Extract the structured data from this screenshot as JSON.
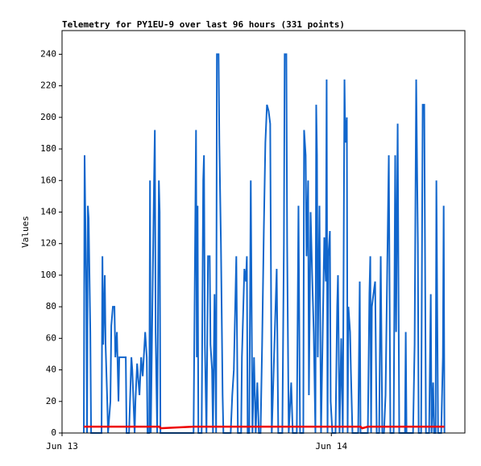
{
  "chart_data": {
    "type": "line",
    "title": "Telemetry for PY1EU-9 over last 96 hours (331 points)",
    "y_label": "Values",
    "xlim": [
      0,
      35.9
    ],
    "xticks": [
      {
        "value": 0,
        "label": "Jun 13"
      },
      {
        "value": 24,
        "label": "Jun 14"
      }
    ],
    "ylim": [
      0,
      255
    ],
    "yticks": [
      0,
      20,
      40,
      60,
      80,
      100,
      120,
      140,
      160,
      180,
      200,
      220,
      240
    ],
    "x": [
      1.94,
      2.01,
      2.16,
      2.23,
      2.3,
      2.37,
      2.52,
      2.59,
      3.52,
      3.6,
      3.67,
      3.81,
      3.88,
      4.03,
      4.1,
      4.31,
      4.39,
      4.53,
      4.67,
      4.75,
      4.89,
      5.03,
      5.1,
      5.25,
      5.68,
      5.75,
      5.97,
      6.04,
      6.18,
      6.26,
      6.47,
      6.54,
      6.69,
      6.9,
      7.05,
      7.19,
      7.41,
      7.55,
      7.62,
      7.77,
      7.84,
      7.91,
      8.05,
      8.2,
      8.27,
      8.34,
      8.48,
      8.63,
      8.7,
      8.77,
      11.72,
      11.94,
      12.01,
      12.08,
      12.15,
      12.44,
      12.58,
      12.65,
      12.73,
      12.87,
      13.01,
      13.16,
      13.23,
      13.37,
      13.45,
      13.59,
      13.73,
      13.8,
      13.95,
      14.02,
      14.16,
      14.31,
      14.38,
      15.03,
      15.17,
      15.31,
      15.53,
      15.67,
      15.96,
      16.03,
      16.25,
      16.39,
      16.47,
      16.54,
      16.68,
      16.82,
      16.97,
      17.11,
      17.26,
      17.4,
      17.54,
      17.69,
      17.83,
      17.98,
      18.12,
      18.26,
      18.41,
      18.55,
      18.69,
      19.13,
      19.27,
      19.63,
      19.77,
      19.84,
      19.99,
      20.06,
      20.2,
      20.42,
      20.56,
      20.92,
      21.07,
      21.21,
      21.5,
      21.57,
      21.71,
      21.79,
      21.93,
      22.0,
      22.15,
      22.29,
      22.43,
      22.58,
      22.65,
      22.72,
      22.79,
      22.94,
      23.08,
      23.37,
      23.51,
      23.58,
      23.66,
      23.73,
      23.87,
      23.94,
      24.09,
      24.37,
      24.52,
      24.59,
      24.73,
      24.88,
      25.02,
      25.17,
      25.24,
      25.38,
      25.45,
      25.52,
      25.67,
      25.74,
      25.88,
      26.39,
      26.53,
      26.6,
      26.75,
      27.25,
      27.39,
      27.47,
      27.54,
      27.61,
      27.75,
      27.9,
      28.04,
      28.26,
      28.4,
      28.54,
      28.69,
      28.83,
      28.98,
      29.12,
      29.26,
      29.55,
      29.69,
      29.77,
      29.91,
      30.05,
      30.56,
      30.63,
      30.7,
      31.28,
      31.42,
      31.56,
      31.71,
      31.78,
      32.0,
      32.14,
      32.28,
      32.43,
      32.71,
      32.86,
      32.93,
      33.07,
      33.15,
      33.29,
      33.36,
      33.51,
      33.79,
      33.94,
      34.01,
      34.08
    ],
    "series": [
      {
        "color": "#1166cc",
        "values": [
          0,
          176,
          88,
          0,
          144,
          136,
          64,
          0,
          0,
          112,
          56,
          100,
          56,
          20,
          0,
          20,
          68,
          80,
          80,
          48,
          64,
          20,
          48,
          48,
          48,
          0,
          0,
          16,
          48,
          40,
          0,
          20,
          44,
          24,
          48,
          36,
          64,
          48,
          0,
          0,
          160,
          0,
          80,
          160,
          192,
          64,
          0,
          160,
          140,
          0,
          0,
          192,
          48,
          144,
          0,
          0,
          160,
          176,
          56,
          0,
          112,
          112,
          56,
          40,
          0,
          88,
          0,
          240,
          240,
          184,
          120,
          24,
          0,
          0,
          24,
          40,
          112,
          0,
          0,
          48,
          104,
          96,
          112,
          0,
          0,
          160,
          0,
          48,
          0,
          32,
          0,
          0,
          56,
          128,
          184,
          208,
          204,
          196,
          0,
          104,
          0,
          0,
          120,
          240,
          240,
          120,
          0,
          32,
          0,
          0,
          144,
          0,
          0,
          192,
          176,
          112,
          160,
          24,
          140,
          100,
          64,
          0,
          208,
          176,
          48,
          144,
          0,
          124,
          96,
          224,
          0,
          112,
          128,
          20,
          0,
          0,
          80,
          100,
          0,
          60,
          0,
          224,
          184,
          200,
          0,
          80,
          64,
          40,
          0,
          0,
          96,
          0,
          0,
          0,
          88,
          112,
          0,
          80,
          88,
          96,
          0,
          0,
          112,
          0,
          0,
          24,
          104,
          176,
          0,
          0,
          176,
          64,
          196,
          0,
          0,
          64,
          0,
          0,
          56,
          224,
          120,
          0,
          0,
          208,
          208,
          0,
          0,
          88,
          0,
          32,
          0,
          0,
          160,
          0,
          0,
          48,
          144,
          0
        ]
      },
      {
        "color": "#ee0000",
        "values": [
          4,
          4,
          4,
          4,
          4,
          4,
          4,
          4,
          4,
          4,
          4,
          4,
          4,
          4,
          4,
          4,
          4,
          4,
          4,
          4,
          4,
          4,
          4,
          4,
          4,
          4,
          4,
          4,
          4,
          4,
          4,
          4,
          4,
          4,
          4,
          4,
          4,
          4,
          4,
          4,
          4,
          4,
          4,
          4,
          4,
          4,
          4,
          4,
          4,
          3,
          4,
          4,
          4,
          4,
          4,
          4,
          4,
          4,
          4,
          4,
          4,
          4,
          4,
          4,
          4,
          4,
          4,
          4,
          4,
          4,
          4,
          4,
          4,
          4,
          4,
          4,
          4,
          4,
          4,
          4,
          4,
          4,
          4,
          4,
          4,
          4,
          4,
          4,
          4,
          4,
          4,
          4,
          4,
          4,
          4,
          4,
          4,
          4,
          4,
          4,
          4,
          4,
          4,
          4,
          4,
          4,
          4,
          4,
          4,
          4,
          4,
          4,
          4,
          4,
          4,
          4,
          4,
          4,
          4,
          4,
          4,
          4,
          4,
          4,
          4,
          4,
          4,
          4,
          4,
          4,
          4,
          4,
          4,
          4,
          4,
          4,
          4,
          4,
          4,
          4,
          4,
          4,
          4,
          4,
          4,
          4,
          4,
          4,
          4,
          4,
          4,
          4,
          3,
          4,
          4,
          4,
          4,
          4,
          4,
          4,
          4,
          4,
          4,
          4,
          4,
          4,
          4,
          4,
          4,
          4,
          4,
          4,
          4,
          4,
          4,
          4,
          4,
          4,
          4,
          4,
          4,
          4,
          4,
          4,
          4,
          4,
          4,
          4,
          4,
          4,
          4,
          4,
          4,
          4,
          4,
          4,
          4,
          4
        ]
      }
    ]
  }
}
